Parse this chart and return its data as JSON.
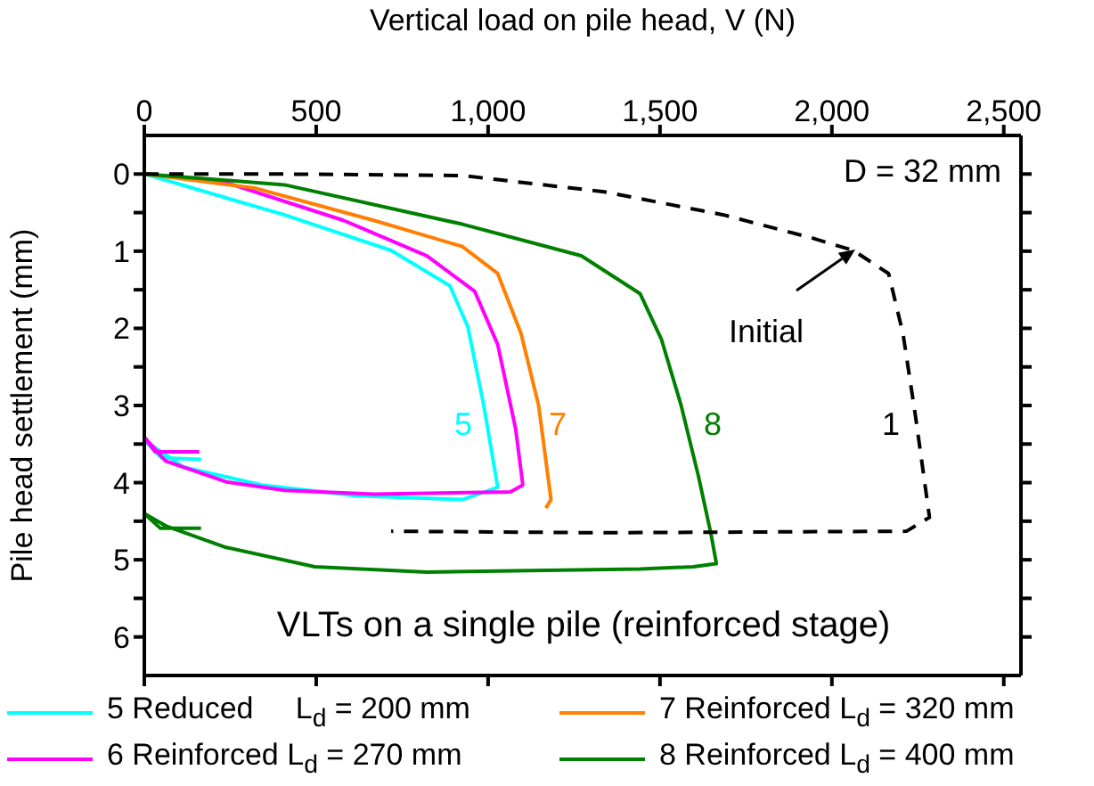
{
  "chart_data": {
    "type": "line",
    "xlabel": "Vertical load on pile head, V (N)",
    "ylabel": "Pile head settlement (mm)",
    "xlim": [
      0,
      2550
    ],
    "xticks": [
      0,
      500,
      {
        "value": 1000,
        "label": "1,000"
      },
      {
        "value": 1500,
        "label": "1,500"
      },
      {
        "value": 2000,
        "label": "2,000"
      },
      {
        "value": 2500,
        "label": "2,500"
      }
    ],
    "ylim": [
      6.5,
      -0.5
    ],
    "yticks": [
      0,
      {
        "value": 0.5,
        "label": null
      },
      1,
      {
        "value": 1.5,
        "label": null
      },
      2,
      {
        "value": 2.5,
        "label": null
      },
      3,
      {
        "value": 3.5,
        "label": null
      },
      4,
      {
        "value": 4.5,
        "label": null
      },
      5,
      {
        "value": 5.5,
        "label": null
      },
      6
    ],
    "legend": "bottom",
    "annotations": [
      "D = 32 mm",
      "VLTs on a single pile (reinforced stage)",
      "5",
      "7",
      "8",
      "1",
      "Initial"
    ],
    "series": [
      {
        "name": "5 Reduced     L$_{d}$ = 200 mm",
        "color": "#00ffff",
        "x": [
          0,
          408,
          718,
          889,
          941,
          987,
          1028,
          925,
          615,
          341,
          114,
          0,
          50,
          165
        ],
        "values": [
          0,
          0.53,
          0.99,
          1.45,
          1.98,
          2.99,
          4.06,
          4.22,
          4.17,
          4.03,
          3.8,
          3.45,
          3.68,
          3.7
        ]
      },
      {
        "name": "6 Reinforced L$_{d}$ = 270 mm",
        "color": "#ff00ff",
        "x": [
          0,
          238,
          579,
          822,
          961,
          1028,
          1080,
          1101,
          1065,
          667,
          408,
          238,
          62,
          0,
          31,
          160
        ],
        "values": [
          0,
          0.11,
          0.6,
          1.06,
          1.52,
          2.21,
          3.3,
          4.03,
          4.12,
          4.15,
          4.1,
          3.99,
          3.72,
          3.41,
          3.6,
          3.6
        ]
      },
      {
        "name": "7 Reinforced L$_{d}$ = 320 mm",
        "color": "#ff7f00",
        "x": [
          0,
          320,
          667,
          925,
          1028,
          1096,
          1147,
          1183,
          1168
        ],
        "values": [
          0,
          0.18,
          0.6,
          0.94,
          1.29,
          2.07,
          3.0,
          4.22,
          4.33
        ]
      },
      {
        "name": "8 Reinforced L$_{d}$ = 400 mm",
        "color": "#008000",
        "x": [
          0,
          408,
          925,
          1271,
          1442,
          1504,
          1561,
          1612,
          1649,
          1664,
          1597,
          1442,
          822,
          496,
          238,
          62,
          0,
          46,
          165
        ],
        "values": [
          0,
          0.14,
          0.65,
          1.06,
          1.55,
          2.14,
          2.99,
          3.92,
          4.68,
          5.05,
          5.09,
          5.12,
          5.16,
          5.09,
          4.84,
          4.56,
          4.4,
          4.59,
          4.59
        ]
      },
      {
        "color": "#000000",
        "line_style": "dashed",
        "x": [
          0,
          408,
          925,
          1338,
          1685,
          1943,
          2062,
          2165,
          2207,
          2243,
          2284,
          2217,
          1338,
          718
        ],
        "values": [
          0,
          0.0,
          0.02,
          0.23,
          0.53,
          0.83,
          0.99,
          1.29,
          2.07,
          3.13,
          4.45,
          4.63,
          4.65,
          4.63
        ]
      }
    ]
  }
}
